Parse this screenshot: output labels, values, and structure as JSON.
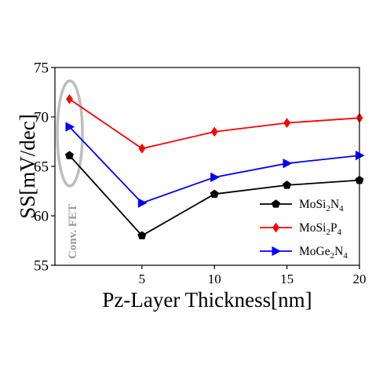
{
  "chart_data": {
    "type": "line",
    "xlabel": "Pz-Layer Thickness[nm]",
    "ylabel": "SS[mV/dec]",
    "x": [
      0,
      5,
      10,
      15,
      20
    ],
    "x_tick_values": [
      5,
      10,
      15,
      20
    ],
    "x_tick_labels": [
      "5",
      "10",
      "15",
      "20"
    ],
    "xlim": [
      -1,
      20
    ],
    "ylim": [
      55,
      75
    ],
    "y_ticks": [
      55,
      60,
      65,
      70,
      75
    ],
    "grid": false,
    "legend_position": "lower-right",
    "annotation": "Conv. FET",
    "series": [
      {
        "name": "MoSi2N4",
        "name_parts": [
          "MoSi",
          "2",
          "N",
          "4"
        ],
        "color": "#000000",
        "marker": "pentagon",
        "values": [
          66.1,
          58.0,
          62.2,
          63.1,
          63.6
        ]
      },
      {
        "name": "MoSi2P4",
        "name_parts": [
          "MoSi",
          "2",
          "P",
          "4"
        ],
        "color": "#ff0000",
        "marker": "diamond",
        "values": [
          71.8,
          66.8,
          68.5,
          69.4,
          69.9
        ]
      },
      {
        "name": "MoGe2N4",
        "name_parts": [
          "MoGe",
          "2",
          "N",
          "4"
        ],
        "color": "#0000ff",
        "marker": "triangle-right",
        "values": [
          69.0,
          61.3,
          63.9,
          65.3,
          66.1
        ]
      }
    ]
  }
}
